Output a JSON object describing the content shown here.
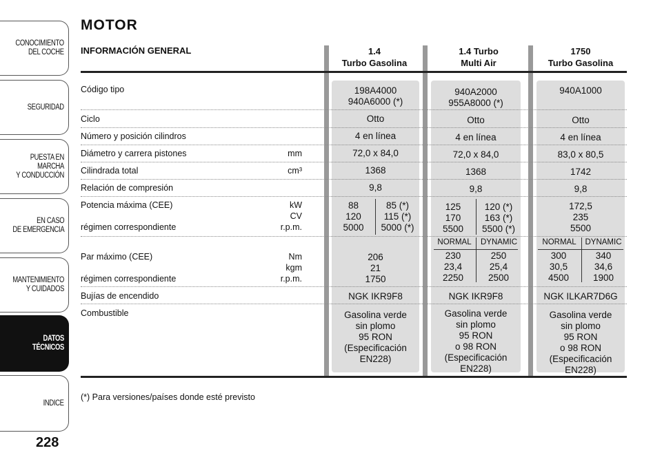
{
  "sidebar": {
    "tabs": [
      {
        "label": "CONOCIMIENTO\nDEL COCHE"
      },
      {
        "label": "SEGURIDAD"
      },
      {
        "label": "PUESTA EN MARCHA\nY CONDUCCIÓN"
      },
      {
        "label": "EN CASO\nDE EMERGENCIA"
      },
      {
        "label": "MANTENIMIENTO\nY CUIDADOS"
      },
      {
        "label": "DATOS TÉCNICOS"
      },
      {
        "label": "INDICE"
      }
    ],
    "page_number": "228"
  },
  "title": "MOTOR",
  "section_header": "INFORMACIÓN GENERAL",
  "columns": [
    {
      "header_line1": "1.4",
      "header_line2": "Turbo Gasolina"
    },
    {
      "header_line1": "1.4 Turbo",
      "header_line2": "Multi Air"
    },
    {
      "header_line1": "1750",
      "header_line2": "Turbo Gasolina"
    }
  ],
  "rows": {
    "codigo": "Código tipo",
    "ciclo": "Ciclo",
    "cilindros": "Número y posición cilindros",
    "diametro": "Diámetro y carrera pistones",
    "diametro_unit": "mm",
    "cilindrada": "Cilindrada total",
    "cilindrada_unit": "cm³",
    "compresion": "Relación de compresión",
    "potencia": "Potencia máxima (CEE)",
    "potencia_unit1": "kW",
    "potencia_unit2": "CV",
    "regimen1": "régimen correspondiente",
    "regimen1_unit": "r.p.m.",
    "par": "Par máximo (CEE)",
    "par_unit1": "Nm",
    "par_unit2": "kgm",
    "regimen2": "régimen correspondiente",
    "regimen2_unit": "r.p.m.",
    "bujias": "Bujías de encendido",
    "combustible": "Combustible"
  },
  "col1": {
    "codigo": "198A4000\n940A6000 (*)",
    "ciclo": "Otto",
    "cilindros": "4 en línea",
    "diametro": "72,0 x 84,0",
    "cilindrada": "1368",
    "compresion": "9,8",
    "potencia_a": "88\n120\n5000",
    "potencia_b": "85 (*)\n115 (*)\n5000 (*)",
    "par": "206\n21\n1750",
    "bujias": "NGK IKR9F8",
    "combustible": "Gasolina verde\nsin plomo\n95 RON\n(Especificación\nEN228)"
  },
  "col2": {
    "codigo": "940A2000\n955A8000 (*)",
    "ciclo": "Otto",
    "cilindros": "4 en línea",
    "diametro": "72,0 x 84,0",
    "cilindrada": "1368",
    "compresion": "9,8",
    "potencia_a": "125\n170\n5500",
    "potencia_b": "120 (*)\n163 (*)\n5500 (*)",
    "normal_label": "NORMAL",
    "dynamic_label": "DYNAMIC",
    "par_normal": "230\n23,4\n2250",
    "par_dynamic": "250\n25,4\n2500",
    "bujias": "NGK IKR9F8",
    "combustible": "Gasolina verde\nsin plomo\n95 RON\no 98 RON\n(Especificación EN228)"
  },
  "col3": {
    "codigo": "940A1000",
    "ciclo": "Otto",
    "cilindros": "4 en línea",
    "diametro": "83,0 x 80,5",
    "cilindrada": "1742",
    "compresion": "9,8",
    "potencia": "172,5\n235\n5500",
    "normal_label": "NORMAL",
    "dynamic_label": "DYNAMIC",
    "par_normal": "300\n30,5\n4500",
    "par_dynamic": "340\n34,6\n1900",
    "bujias": "NGK ILKAR7D6G",
    "combustible": "Gasolina verde\nsin plomo\n95 RON\no 98 RON\n(Especificación EN228)"
  },
  "footnote": "(*) Para versiones/países donde esté previsto"
}
